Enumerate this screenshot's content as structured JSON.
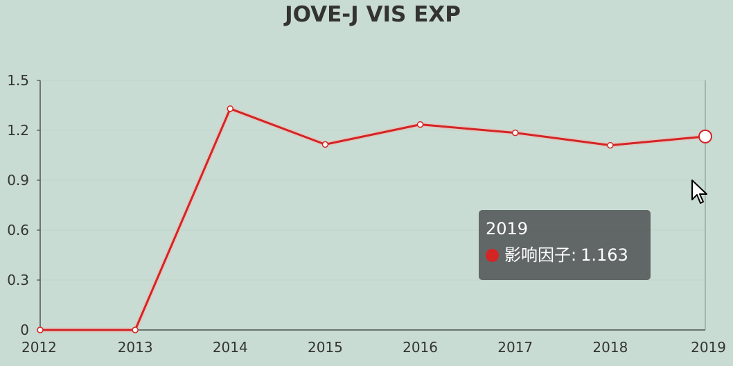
{
  "chart_data": {
    "type": "line",
    "title": "JOVE-J VIS EXP",
    "categories": [
      "2012",
      "2013",
      "2014",
      "2015",
      "2016",
      "2017",
      "2018",
      "2019"
    ],
    "series": [
      {
        "name": "影响因子",
        "values": [
          0,
          0,
          1.33,
          1.115,
          1.235,
          1.185,
          1.11,
          1.163
        ],
        "color": "#d42424"
      }
    ],
    "ylim": [
      0,
      1.5
    ],
    "y_ticks": [
      "0",
      "0.3",
      "0.6",
      "0.9",
      "1.2",
      "1.5"
    ],
    "grid": true,
    "highlighted_category": "2019"
  },
  "tooltip": {
    "title": "2019",
    "series_name": "影响因子",
    "separator": ":",
    "value": "1.163",
    "color": "#d42424"
  },
  "colors": {
    "background": "#c9dcd3",
    "line": "#d42424",
    "axis": "#333333",
    "grid": "#bfd3c9"
  }
}
